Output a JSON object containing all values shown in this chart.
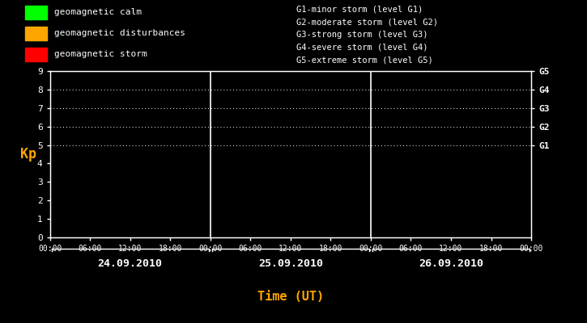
{
  "bg_color": "#000000",
  "plot_bg_color": "#000000",
  "text_color": "#ffffff",
  "orange_color": "#ffa500",
  "grid_color": "#ffffff",
  "border_color": "#ffffff",
  "legend_items": [
    {
      "label": "geomagnetic calm",
      "color": "#00ff00"
    },
    {
      "label": "geomagnetic disturbances",
      "color": "#ffa500"
    },
    {
      "label": "geomagnetic storm",
      "color": "#ff0000"
    }
  ],
  "right_legend": [
    "G1-minor storm (level G1)",
    "G2-moderate storm (level G2)",
    "G3-strong storm (level G3)",
    "G4-severe storm (level G4)",
    "G5-extreme storm (level G5)"
  ],
  "ylabel": "Kp",
  "xlabel": "Time (UT)",
  "ylim": [
    0,
    9
  ],
  "yticks": [
    0,
    1,
    2,
    3,
    4,
    5,
    6,
    7,
    8,
    9
  ],
  "right_labels": [
    "G1",
    "G2",
    "G3",
    "G4",
    "G5"
  ],
  "right_label_yvals": [
    5,
    6,
    7,
    8,
    9
  ],
  "dotted_yvals": [
    5,
    6,
    7,
    8,
    9
  ],
  "days": [
    "24.09.2010",
    "25.09.2010",
    "26.09.2010"
  ],
  "time_ticks_labels": [
    "00:00",
    "06:00",
    "12:00",
    "18:00",
    "00:00",
    "06:00",
    "12:00",
    "18:00",
    "00:00",
    "06:00",
    "12:00",
    "18:00",
    "00:00"
  ],
  "num_days": 3,
  "ticks_per_day": 4,
  "fig_width": 7.25,
  "fig_height": 4.0,
  "dpi": 100
}
